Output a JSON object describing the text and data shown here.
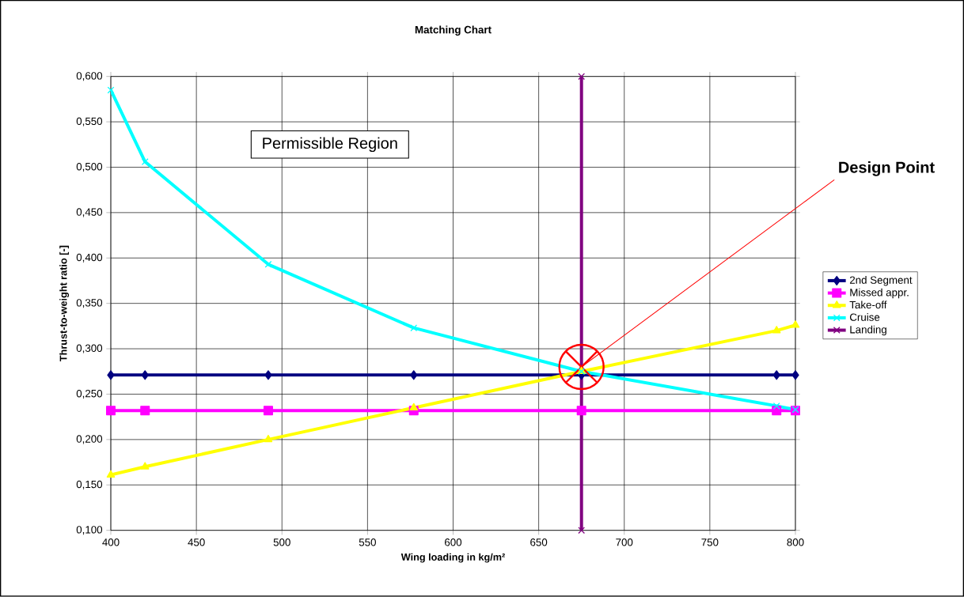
{
  "chart_data": {
    "type": "line",
    "title": "Matching Chart",
    "xlabel": "Wing loading in kg/m²",
    "ylabel": "Thrust-to-weight ratio [-]",
    "xlim": [
      400,
      800
    ],
    "xticks": [
      400,
      450,
      500,
      550,
      600,
      650,
      700,
      750,
      800
    ],
    "ylim": [
      0.1,
      0.6
    ],
    "yticks": [
      {
        "value": 0.1,
        "label": "0,100"
      },
      {
        "value": 0.15,
        "label": "0,150"
      },
      {
        "value": 0.2,
        "label": "0,200"
      },
      {
        "value": 0.25,
        "label": "0,250"
      },
      {
        "value": 0.3,
        "label": "0,300"
      },
      {
        "value": 0.35,
        "label": "0,350"
      },
      {
        "value": 0.4,
        "label": "0,400"
      },
      {
        "value": 0.45,
        "label": "0,450"
      },
      {
        "value": 0.5,
        "label": "0,500"
      },
      {
        "value": 0.55,
        "label": "0,550"
      },
      {
        "value": 0.6,
        "label": "0,600"
      }
    ],
    "grid": true,
    "legend": "right",
    "series": [
      {
        "name": "2nd Segment",
        "color": "#000080",
        "marker": "diamond",
        "x": [
          400,
          420,
          492,
          577,
          675,
          789,
          800
        ],
        "values": [
          0.271,
          0.271,
          0.271,
          0.271,
          0.271,
          0.271,
          0.271
        ]
      },
      {
        "name": "Missed appr.",
        "color": "#ff00ff",
        "marker": "square",
        "x": [
          400,
          420,
          492,
          577,
          675,
          789,
          800
        ],
        "values": [
          0.232,
          0.232,
          0.232,
          0.232,
          0.232,
          0.232,
          0.232
        ]
      },
      {
        "name": "Take-off",
        "color": "#ffff00",
        "marker": "triangle",
        "x": [
          400,
          420,
          492,
          577,
          675,
          789,
          800
        ],
        "values": [
          0.161,
          0.17,
          0.2,
          0.235,
          0.275,
          0.32,
          0.326
        ]
      },
      {
        "name": "Cruise",
        "color": "#00ffff",
        "marker": "cross",
        "x": [
          400,
          420,
          492,
          577,
          675,
          789,
          800
        ],
        "values": [
          0.585,
          0.506,
          0.393,
          0.323,
          0.275,
          0.237,
          0.233
        ]
      },
      {
        "name": "Landing",
        "color": "#800080",
        "marker": "cross",
        "x": [
          675,
          675
        ],
        "values": [
          0.1,
          0.6
        ]
      }
    ],
    "annotations": [
      "Permissible Region",
      {
        "text": "Design Point",
        "x": 675,
        "y": 0.28
      }
    ]
  }
}
